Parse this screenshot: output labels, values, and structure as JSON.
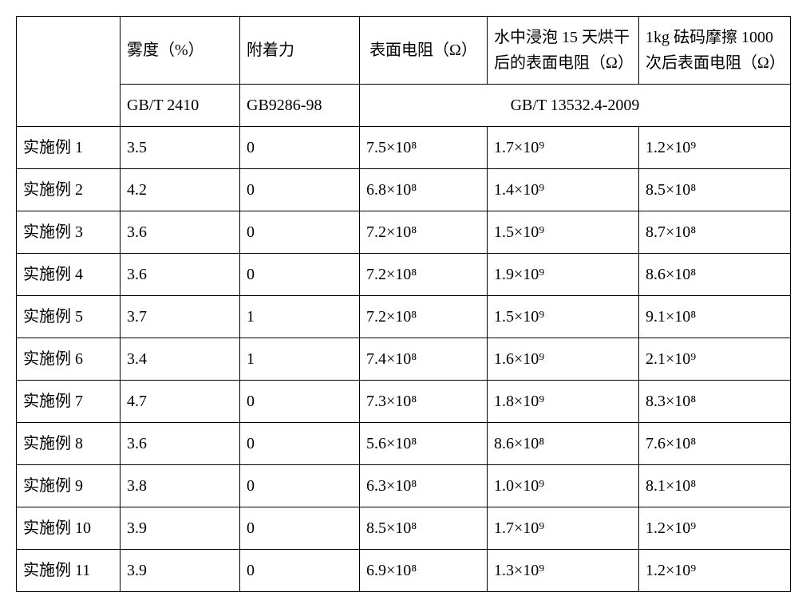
{
  "table": {
    "headers": {
      "h1": "",
      "h2": "雾度（%）",
      "h3": "附着力",
      "h4": "表面电阻（Ω）",
      "h5": "水中浸泡 15 天烘干后的表面电阻（Ω）",
      "h6": "1kg 砝码摩擦 1000 次后表面电阻（Ω）",
      "std1": "GB/T 2410",
      "std2": "GB9286-98",
      "std3": "GB/T 13532.4-2009"
    },
    "rows": [
      {
        "label": "实施例 1",
        "haze": "3.5",
        "adh": "0",
        "r1": "7.5×10⁸",
        "r2": "1.7×10⁹",
        "r3": "1.2×10⁹"
      },
      {
        "label": "实施例 2",
        "haze": "4.2",
        "adh": "0",
        "r1": "6.8×10⁸",
        "r2": "1.4×10⁹",
        "r3": "8.5×10⁸"
      },
      {
        "label": "实施例 3",
        "haze": "3.6",
        "adh": "0",
        "r1": "7.2×10⁸",
        "r2": "1.5×10⁹",
        "r3": "8.7×10⁸"
      },
      {
        "label": "实施例 4",
        "haze": "3.6",
        "adh": "0",
        "r1": "7.2×10⁸",
        "r2": "1.9×10⁹",
        "r3": "8.6×10⁸"
      },
      {
        "label": "实施例 5",
        "haze": "3.7",
        "adh": "1",
        "r1": "7.2×10⁸",
        "r2": "1.5×10⁹",
        "r3": "9.1×10⁸"
      },
      {
        "label": "实施例 6",
        "haze": "3.4",
        "adh": "1",
        "r1": "7.4×10⁸",
        "r2": "1.6×10⁹",
        "r3": "2.1×10⁹"
      },
      {
        "label": "实施例 7",
        "haze": "4.7",
        "adh": "0",
        "r1": "7.3×10⁸",
        "r2": "1.8×10⁹",
        "r3": "8.3×10⁸"
      },
      {
        "label": "实施例 8",
        "haze": "3.6",
        "adh": "0",
        "r1": "5.6×10⁸",
        "r2": "8.6×10⁸",
        "r3": "7.6×10⁸"
      },
      {
        "label": "实施例 9",
        "haze": "3.8",
        "adh": "0",
        "r1": "6.3×10⁸",
        "r2": "1.0×10⁹",
        "r3": "8.1×10⁸"
      },
      {
        "label": "实施例 10",
        "haze": "3.9",
        "adh": "0",
        "r1": "8.5×10⁸",
        "r2": "1.7×10⁹",
        "r3": "1.2×10⁹"
      },
      {
        "label": "实施例 11",
        "haze": "3.9",
        "adh": "0",
        "r1": "6.9×10⁸",
        "r2": "1.3×10⁹",
        "r3": "1.2×10⁹"
      }
    ],
    "colors": {
      "border": "#000000",
      "text": "#000000",
      "bg": "#ffffff"
    },
    "font_size_pt": 15
  }
}
